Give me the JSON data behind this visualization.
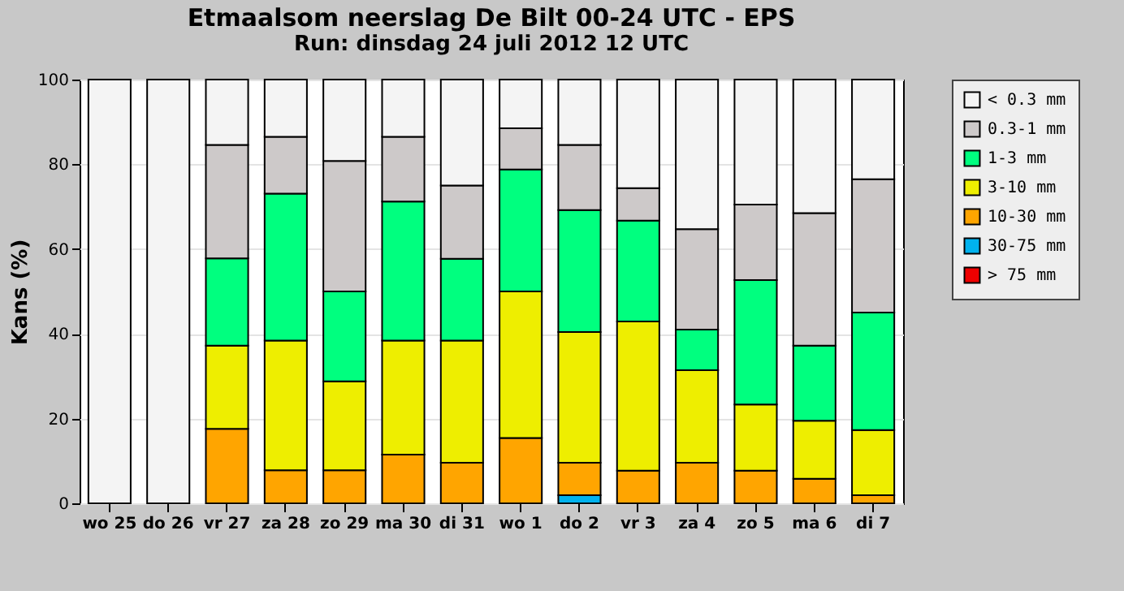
{
  "chart_data": {
    "type": "bar",
    "title": "Etmaalsom neerslag De Bilt 00-24 UTC - EPS",
    "subtitle": "Run: dinsdag 24 juli 2012   12 UTC",
    "ylabel": "Kans (%)",
    "categories": [
      "wo 25",
      "do 26",
      "vr 27",
      "za 28",
      "zo 29",
      "ma 30",
      "di 31",
      "wo  1",
      "do  2",
      "vr  3",
      "za  4",
      "zo  5",
      "ma  6",
      "di  7"
    ],
    "stacked": true,
    "ylim": [
      0,
      100
    ],
    "yticks": [
      0,
      20,
      40,
      60,
      80,
      100
    ],
    "grid": "y",
    "legend": "right",
    "series": [
      {
        "name": "> 75 mm",
        "color": "#ee0000",
        "values": [
          0,
          0,
          0,
          0,
          0,
          0,
          0,
          0,
          0,
          0,
          0,
          0,
          0,
          0
        ]
      },
      {
        "name": "30-75 mm",
        "color": "#00b2ee",
        "values": [
          0,
          0,
          0,
          0,
          0,
          0,
          0,
          0,
          1.9,
          0,
          0,
          0,
          0,
          0
        ]
      },
      {
        "name": "10-30 mm",
        "color": "#ffa500",
        "values": [
          0,
          0,
          17.6,
          7.8,
          7.8,
          11.5,
          9.6,
          15.4,
          7.7,
          7.7,
          9.6,
          7.7,
          5.8,
          1.9
        ]
      },
      {
        "name": "3-10 mm",
        "color": "#eeee00",
        "values": [
          0,
          0,
          19.6,
          30.6,
          21.0,
          26.9,
          28.8,
          34.6,
          30.8,
          35.2,
          21.8,
          15.6,
          13.7,
          15.4
        ]
      },
      {
        "name": "1-3 mm",
        "color": "#00ff7f",
        "values": [
          0,
          0,
          20.6,
          34.7,
          21.2,
          32.8,
          19.3,
          28.8,
          28.8,
          23.8,
          9.6,
          29.4,
          17.7,
          27.7
        ]
      },
      {
        "name": "0.3-1 mm",
        "color": "#cdc9c9",
        "values": [
          0,
          0,
          26.8,
          13.4,
          30.8,
          15.3,
          17.3,
          9.7,
          15.4,
          7.7,
          23.7,
          17.8,
          31.3,
          31.5
        ]
      },
      {
        "name": "< 0.3 mm",
        "color": "#f4f4f4",
        "values": [
          100,
          100,
          15.4,
          13.5,
          19.2,
          13.5,
          25.0,
          11.5,
          15.4,
          25.6,
          35.3,
          29.5,
          31.5,
          23.5
        ]
      }
    ]
  }
}
